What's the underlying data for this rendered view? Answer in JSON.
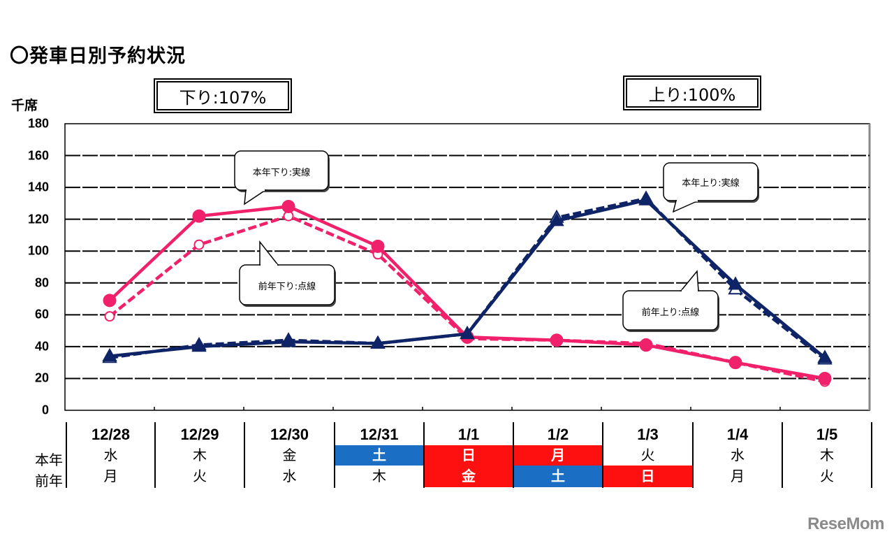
{
  "header": {
    "title": "〇発車日別予約状況",
    "unit": "千席",
    "down_ratio": "下り:107%",
    "up_ratio": "上り:100%"
  },
  "callouts": {
    "down_current": "本年下り:実線",
    "down_prior": "前年下り:点線",
    "up_current": "本年上り:実線",
    "up_prior": "前年上り:点線"
  },
  "table": {
    "row_labels": {
      "current": "本年",
      "prior": "前年"
    },
    "columns": [
      {
        "date": "12/28",
        "current": "水",
        "prior": "月",
        "current_bg": "",
        "prior_bg": ""
      },
      {
        "date": "12/29",
        "current": "木",
        "prior": "火",
        "current_bg": "",
        "prior_bg": ""
      },
      {
        "date": "12/30",
        "current": "金",
        "prior": "水",
        "current_bg": "",
        "prior_bg": ""
      },
      {
        "date": "12/31",
        "current": "土",
        "prior": "木",
        "current_bg": "#1a6fc4",
        "prior_bg": ""
      },
      {
        "date": "1/1",
        "current": "日",
        "prior": "金",
        "current_bg": "#ff1010",
        "prior_bg": "#ff1010"
      },
      {
        "date": "1/2",
        "current": "月",
        "prior": "土",
        "current_bg": "#ff1010",
        "prior_bg": "#1a6fc4"
      },
      {
        "date": "1/3",
        "current": "火",
        "prior": "日",
        "current_bg": "",
        "prior_bg": "#ff1010"
      },
      {
        "date": "1/4",
        "current": "水",
        "prior": "月",
        "current_bg": "",
        "prior_bg": ""
      },
      {
        "date": "1/5",
        "current": "木",
        "prior": "火",
        "current_bg": "",
        "prior_bg": ""
      }
    ]
  },
  "logo": "ReseMom",
  "colors": {
    "down": "#f0206a",
    "up": "#0e2466",
    "saturday": "#1a6fc4",
    "holiday": "#ff1010"
  },
  "chart_data": {
    "type": "line",
    "title": "〇発車日別予約状況",
    "xlabel": "",
    "ylabel": "千席",
    "ylim": [
      0,
      180
    ],
    "yticks": [
      0,
      20,
      40,
      60,
      80,
      100,
      120,
      140,
      160,
      180
    ],
    "grid": true,
    "categories": [
      "12/28",
      "12/29",
      "12/30",
      "12/31",
      "1/1",
      "1/2",
      "1/3",
      "1/4",
      "1/5"
    ],
    "series": [
      {
        "name": "本年下り:実線",
        "style": "solid",
        "marker": "filled-circle",
        "color": "#f0206a",
        "values": [
          69,
          122,
          128,
          103,
          46,
          44,
          41,
          30,
          20
        ]
      },
      {
        "name": "前年下り:点線",
        "style": "dashed",
        "marker": "open-circle",
        "color": "#f0206a",
        "values": [
          59,
          104,
          122,
          98,
          45,
          44,
          42,
          30,
          18
        ]
      },
      {
        "name": "本年上り:実線",
        "style": "solid",
        "marker": "filled-triangle",
        "color": "#0e2466",
        "values": [
          34,
          40,
          43,
          42,
          48,
          119,
          132,
          79,
          33
        ]
      },
      {
        "name": "前年上り:点線",
        "style": "dashed",
        "marker": "open-triangle",
        "color": "#0e2466",
        "values": [
          33,
          41,
          44,
          42,
          48,
          121,
          133,
          76,
          32
        ]
      }
    ],
    "annotations": [
      "下り:107%",
      "上り:100%"
    ]
  }
}
